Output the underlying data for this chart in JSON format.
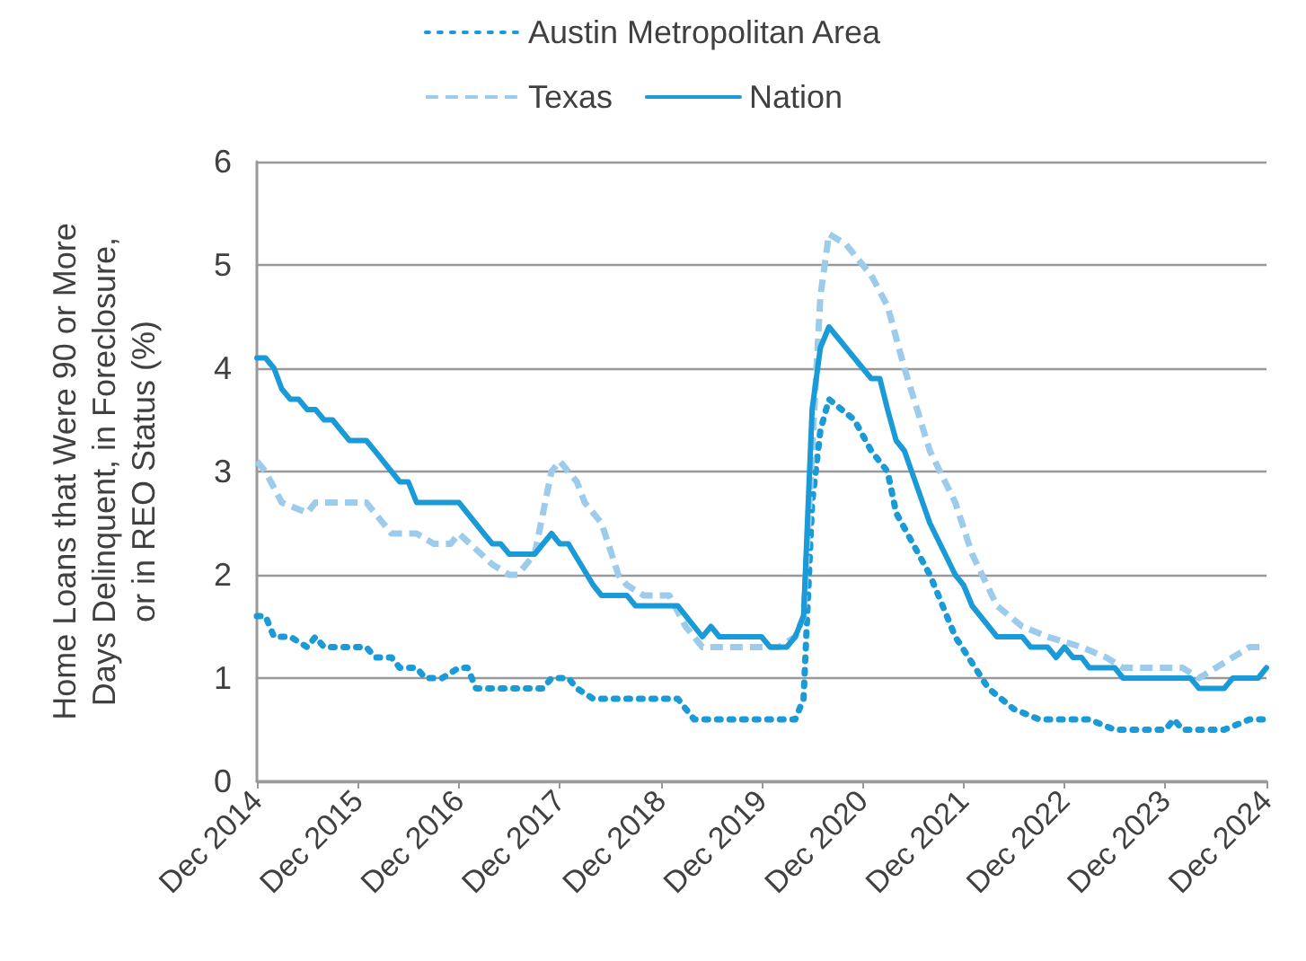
{
  "chart_data": {
    "type": "line",
    "ylabel": "Home Loans that Were 90 or More Days Delinquent, in Foreclosure, or in REO Status (%)",
    "ylim": [
      0,
      6
    ],
    "yticks": [
      0,
      1,
      2,
      3,
      4,
      5,
      6
    ],
    "xlim": [
      "2014-12",
      "2024-12"
    ],
    "xticks": [
      {
        "value": "2014-12",
        "label": "Dec 2014"
      },
      {
        "value": "2015-12",
        "label": "Dec 2015"
      },
      {
        "value": "2016-12",
        "label": "Dec 2016"
      },
      {
        "value": "2017-12",
        "label": "Dec 2017"
      },
      {
        "value": "2018-12",
        "label": "Dec 2018"
      },
      {
        "value": "2019-12",
        "label": "Dec 2019"
      },
      {
        "value": "2020-12",
        "label": "Dec 2020"
      },
      {
        "value": "2021-12",
        "label": "Dec 2021"
      },
      {
        "value": "2022-12",
        "label": "Dec 2022"
      },
      {
        "value": "2023-12",
        "label": "Dec 2023"
      },
      {
        "value": "2024-12",
        "label": "Dec 2024"
      }
    ],
    "grid": "y",
    "legend": "top",
    "marker": "none",
    "series": [
      {
        "name": "Austin Metropolitan Area",
        "color": "#1a9bd7",
        "line_style": "dotted",
        "x": [
          "2014-12",
          "2015-01",
          "2015-02",
          "2015-04",
          "2015-06",
          "2015-07",
          "2015-08",
          "2016-01",
          "2016-02",
          "2016-04",
          "2016-05",
          "2016-07",
          "2016-08",
          "2016-10",
          "2016-12",
          "2017-01",
          "2017-02",
          "2017-10",
          "2017-11",
          "2018-01",
          "2018-02",
          "2018-04",
          "2019-02",
          "2019-04",
          "2020-04",
          "2020-05",
          "2020-06",
          "2020-07",
          "2020-08",
          "2020-11",
          "2021-01",
          "2021-03",
          "2021-04",
          "2021-06",
          "2021-08",
          "2021-09",
          "2021-11",
          "2022-03",
          "2022-06",
          "2022-09",
          "2023-03",
          "2023-06",
          "2023-12",
          "2024-01",
          "2024-02",
          "2024-07",
          "2024-10",
          "2024-12"
        ],
        "values": [
          1.6,
          1.6,
          1.4,
          1.4,
          1.3,
          1.4,
          1.3,
          1.3,
          1.2,
          1.2,
          1.1,
          1.1,
          1.0,
          1.0,
          1.1,
          1.1,
          0.9,
          0.9,
          1.0,
          1.0,
          0.9,
          0.8,
          0.8,
          0.6,
          0.6,
          0.8,
          2.7,
          3.4,
          3.7,
          3.5,
          3.2,
          3.0,
          2.6,
          2.3,
          2.0,
          1.8,
          1.4,
          0.9,
          0.7,
          0.6,
          0.6,
          0.5,
          0.5,
          0.6,
          0.5,
          0.5,
          0.6,
          0.6
        ]
      },
      {
        "name": "Texas",
        "color": "#9ccbeb",
        "line_style": "dashed",
        "x": [
          "2014-12",
          "2015-01",
          "2015-03",
          "2015-06",
          "2015-07",
          "2016-01",
          "2016-04",
          "2016-07",
          "2016-09",
          "2016-11",
          "2016-12",
          "2017-04",
          "2017-06",
          "2017-07",
          "2017-09",
          "2017-11",
          "2017-12",
          "2018-02",
          "2018-03",
          "2018-05",
          "2018-07",
          "2018-08",
          "2018-10",
          "2019-01",
          "2019-03",
          "2019-05",
          "2019-11",
          "2020-02",
          "2020-04",
          "2020-05",
          "2020-06",
          "2020-07",
          "2020-08",
          "2020-10",
          "2021-01",
          "2021-03",
          "2021-05",
          "2021-08",
          "2021-11",
          "2022-01",
          "2022-04",
          "2022-07",
          "2022-10",
          "2023-02",
          "2023-05",
          "2023-07",
          "2024-02",
          "2024-04",
          "2024-06",
          "2024-10",
          "2024-12"
        ],
        "values": [
          3.1,
          3.0,
          2.7,
          2.6,
          2.7,
          2.7,
          2.4,
          2.4,
          2.3,
          2.3,
          2.4,
          2.1,
          2.0,
          2.0,
          2.2,
          3.0,
          3.1,
          2.9,
          2.7,
          2.5,
          2.0,
          1.9,
          1.8,
          1.8,
          1.5,
          1.3,
          1.3,
          1.3,
          1.4,
          1.6,
          3.2,
          4.7,
          5.3,
          5.2,
          4.9,
          4.6,
          4.0,
          3.2,
          2.7,
          2.2,
          1.7,
          1.5,
          1.4,
          1.3,
          1.2,
          1.1,
          1.1,
          1.0,
          1.1,
          1.3,
          1.3
        ]
      },
      {
        "name": "Nation",
        "color": "#1a9bd7",
        "line_style": "solid",
        "x": [
          "2014-12",
          "2015-01",
          "2015-02",
          "2015-03",
          "2015-04",
          "2015-05",
          "2015-06",
          "2015-07",
          "2015-08",
          "2015-09",
          "2015-10",
          "2015-11",
          "2016-01",
          "2016-02",
          "2016-04",
          "2016-05",
          "2016-06",
          "2016-07",
          "2016-12",
          "2017-03",
          "2017-04",
          "2017-05",
          "2017-06",
          "2017-09",
          "2017-11",
          "2017-12",
          "2018-01",
          "2018-04",
          "2018-05",
          "2018-08",
          "2018-09",
          "2019-02",
          "2019-05",
          "2019-06",
          "2019-07",
          "2019-12",
          "2020-01",
          "2020-03",
          "2020-04",
          "2020-05",
          "2020-06",
          "2020-07",
          "2020-08",
          "2020-12",
          "2021-01",
          "2021-02",
          "2021-03",
          "2021-04",
          "2021-05",
          "2021-08",
          "2021-11",
          "2021-12",
          "2022-01",
          "2022-04",
          "2022-07",
          "2022-08",
          "2022-10",
          "2022-11",
          "2022-12",
          "2023-01",
          "2023-02",
          "2023-03",
          "2023-06",
          "2023-07",
          "2024-03",
          "2024-04",
          "2024-07",
          "2024-08",
          "2024-11",
          "2024-12"
        ],
        "values": [
          4.1,
          4.1,
          4.0,
          3.8,
          3.7,
          3.7,
          3.6,
          3.6,
          3.5,
          3.5,
          3.4,
          3.3,
          3.3,
          3.2,
          3.0,
          2.9,
          2.9,
          2.7,
          2.7,
          2.4,
          2.3,
          2.3,
          2.2,
          2.2,
          2.4,
          2.3,
          2.3,
          1.9,
          1.8,
          1.8,
          1.7,
          1.7,
          1.4,
          1.5,
          1.4,
          1.4,
          1.3,
          1.3,
          1.4,
          1.6,
          3.6,
          4.2,
          4.4,
          4.0,
          3.9,
          3.9,
          3.6,
          3.3,
          3.2,
          2.5,
          2.0,
          1.9,
          1.7,
          1.4,
          1.4,
          1.3,
          1.3,
          1.2,
          1.3,
          1.2,
          1.2,
          1.1,
          1.1,
          1.0,
          1.0,
          0.9,
          0.9,
          1.0,
          1.0,
          1.1
        ]
      }
    ]
  }
}
